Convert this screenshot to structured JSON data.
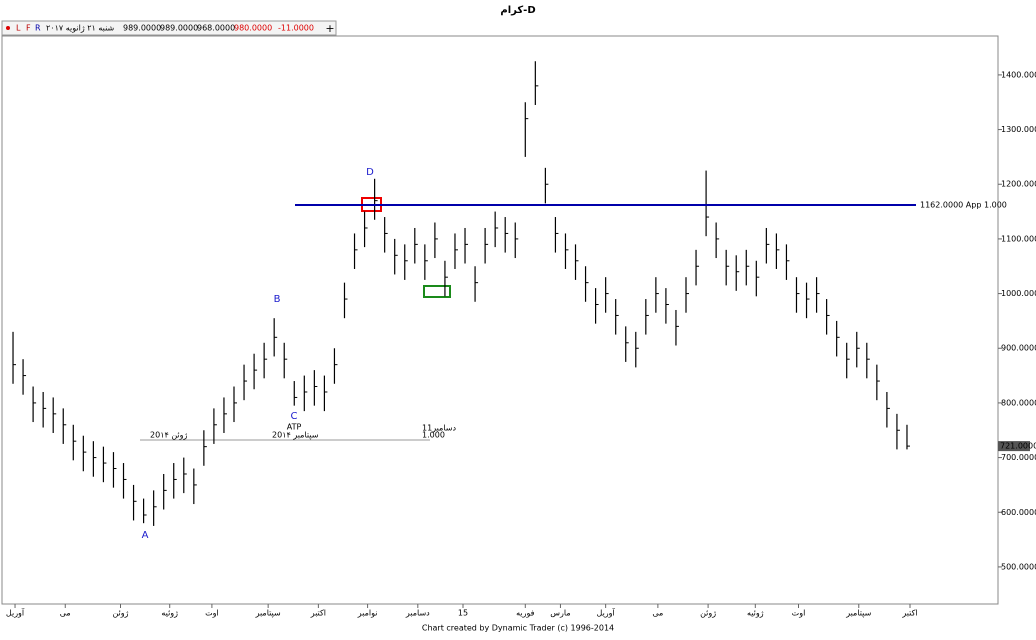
{
  "chart_data": {
    "type": "ohlc",
    "title": "كرام-D",
    "header": {
      "flags": [
        "L",
        "F",
        "R"
      ],
      "date": "شنبه ۲۱ ژانویه ۲۰۱۷",
      "open": "989.0000",
      "high": "989.0000",
      "low": "968.0000",
      "close": "980.0000",
      "change": "-11.0000"
    },
    "footer": "Chart created by Dynamic Trader  (c) 1996-2014",
    "high": [
      930,
      880,
      830,
      820,
      810,
      790,
      760,
      740,
      730,
      720,
      710,
      690,
      650,
      625,
      640,
      670,
      690,
      700,
      680,
      750,
      790,
      810,
      830,
      870,
      890,
      910,
      955,
      910,
      840,
      850,
      860,
      850,
      900,
      1020,
      1110,
      1150,
      1210,
      1140,
      1100,
      1090,
      1120,
      1090,
      1130,
      1060,
      1110,
      1120,
      1050,
      1120,
      1150,
      1140,
      1130,
      1350,
      1425,
      1230,
      1140,
      1110,
      1090,
      1050,
      1010,
      1030,
      990,
      940,
      930,
      990,
      1030,
      1010,
      970,
      1030,
      1080,
      1225,
      1130,
      1080,
      1070,
      1080,
      1060,
      1120,
      1110,
      1090,
      1030,
      1020,
      1030,
      990,
      950,
      910,
      930,
      910,
      870,
      820,
      780,
      760
    ],
    "low": [
      835,
      815,
      765,
      755,
      745,
      725,
      695,
      675,
      665,
      655,
      645,
      625,
      585,
      580,
      575,
      605,
      625,
      635,
      615,
      685,
      725,
      745,
      765,
      805,
      825,
      845,
      885,
      845,
      795,
      785,
      795,
      785,
      835,
      955,
      1045,
      1085,
      1135,
      1075,
      1035,
      1025,
      1055,
      1025,
      1065,
      995,
      1045,
      1055,
      985,
      1055,
      1085,
      1075,
      1065,
      1250,
      1345,
      1165,
      1075,
      1045,
      1025,
      985,
      945,
      965,
      925,
      875,
      865,
      925,
      965,
      945,
      905,
      965,
      1015,
      1105,
      1065,
      1015,
      1005,
      1015,
      995,
      1055,
      1045,
      1025,
      965,
      955,
      965,
      925,
      885,
      845,
      865,
      845,
      805,
      755,
      715,
      715
    ],
    "close": [
      870,
      850,
      800,
      790,
      780,
      760,
      730,
      710,
      700,
      690,
      680,
      660,
      620,
      595,
      610,
      640,
      660,
      670,
      650,
      720,
      760,
      780,
      800,
      840,
      860,
      880,
      920,
      880,
      810,
      820,
      830,
      820,
      870,
      990,
      1080,
      1120,
      1170,
      1110,
      1070,
      1060,
      1090,
      1060,
      1100,
      1030,
      1080,
      1090,
      1020,
      1090,
      1120,
      1110,
      1100,
      1320,
      1380,
      1200,
      1110,
      1080,
      1060,
      1020,
      980,
      1000,
      960,
      910,
      900,
      960,
      1000,
      980,
      940,
      1000,
      1050,
      1140,
      1100,
      1050,
      1040,
      1050,
      1030,
      1090,
      1080,
      1060,
      1000,
      990,
      1000,
      960,
      920,
      880,
      900,
      880,
      840,
      790,
      750,
      721
    ],
    "color": "#000000",
    "xlim": [
      0,
      90
    ],
    "xticks": [
      {
        "value": 0.7,
        "label": "آوریل"
      },
      {
        "value": 5.7,
        "label": "می"
      },
      {
        "value": 11.2,
        "label": "ژوئن"
      },
      {
        "value": 16.1,
        "label": "ژوئیه"
      },
      {
        "value": 20.3,
        "label": "اوت"
      },
      {
        "value": 25.9,
        "label": "سپتامبر"
      },
      {
        "value": 30.9,
        "label": "اکتبر"
      },
      {
        "value": 35.8,
        "label": "نوامبر"
      },
      {
        "value": 40.8,
        "label": "دسامبر"
      },
      {
        "value": 45.3,
        "label": "15"
      },
      {
        "value": 51.5,
        "label": "فوریه"
      },
      {
        "value": 55,
        "label": "مارس"
      },
      {
        "value": 59.5,
        "label": "آوریل"
      },
      {
        "value": 64.7,
        "label": "می"
      },
      {
        "value": 69.7,
        "label": "ژوئن"
      },
      {
        "value": 74.4,
        "label": "ژوئیه"
      },
      {
        "value": 78.7,
        "label": "اوت"
      },
      {
        "value": 84.7,
        "label": "سپتامبر"
      },
      {
        "value": 89.8,
        "label": "اکتبر"
      }
    ],
    "ylim": [
      434,
      1473
    ],
    "yticks": [
      {
        "value": 500,
        "label": "500.0000"
      },
      {
        "value": 600,
        "label": "600.0000"
      },
      {
        "value": 700,
        "label": "700.0000"
      },
      {
        "value": 800,
        "label": "800.0000"
      },
      {
        "value": 900,
        "label": "900.0000"
      },
      {
        "value": 1000,
        "label": "1000.0000"
      },
      {
        "value": 1100,
        "label": "1100.0000"
      },
      {
        "value": 1200,
        "label": "1200.0000"
      },
      {
        "value": 1300,
        "label": "1300.0000"
      },
      {
        "value": 1400,
        "label": "1400.0000"
      }
    ],
    "level": {
      "value": 1162,
      "label": "1162.0000 App 1.000",
      "color": "#0000aa"
    },
    "last_price": {
      "value": 721,
      "label": "721.0000"
    },
    "annotations": [
      "A",
      "B",
      "C",
      "D"
    ],
    "time_notes": [
      "20ژوئن ۱۴",
      "20سپتامبر ۱۴",
      "ATP",
      "11دسامبر",
      "1.000"
    ]
  }
}
